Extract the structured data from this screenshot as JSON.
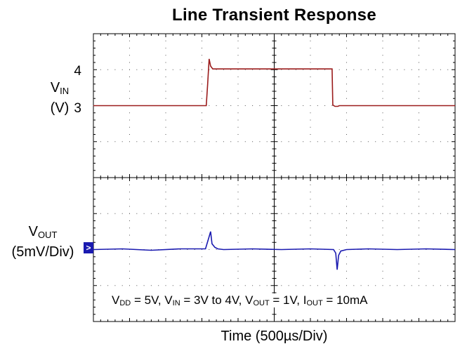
{
  "chart_data": {
    "type": "line",
    "title": "Line Transient Response",
    "xlabel": "Time (500µs/Div)",
    "x_unit": "µs",
    "x_per_div": 500,
    "xlim": [
      0,
      5000
    ],
    "grid": true,
    "panels": [
      {
        "name_main": "V",
        "name_sub": "IN",
        "unit": "(V)",
        "ylim": [
          2,
          5
        ],
        "yticks": [
          "3",
          "4"
        ],
        "ytick_values": [
          3,
          4
        ],
        "color": "#9b1c1c",
        "series": {
          "x": [
            0,
            1500,
            1560,
            1580,
            1600,
            1620,
            1650,
            1700,
            2500,
            3000,
            3200,
            3300,
            3310,
            3340,
            3380,
            3400,
            5000
          ],
          "y": [
            3.0,
            3.0,
            3.0,
            3.6,
            4.3,
            4.1,
            4.02,
            4.02,
            4.02,
            4.02,
            4.02,
            4.02,
            3.02,
            2.98,
            2.98,
            3.0,
            3.0
          ]
        }
      },
      {
        "name_main": "V",
        "name_sub": "OUT",
        "unit": "(5mV/Div)",
        "mv_per_div": 5,
        "ylim_mV": [
          -10,
          10
        ],
        "color": "#1a1ab0",
        "marker": ">",
        "series": {
          "x": [
            0,
            400,
            800,
            1200,
            1550,
            1600,
            1620,
            1640,
            1680,
            1720,
            1800,
            2200,
            2600,
            3000,
            3320,
            3350,
            3370,
            3390,
            3420,
            3500,
            3800,
            4200,
            4600,
            5000
          ],
          "y_mV": [
            0,
            0.1,
            -0.1,
            0.1,
            0.1,
            1.8,
            2.5,
            0.8,
            0.3,
            0.1,
            0,
            0.1,
            0,
            0.1,
            0,
            -0.5,
            -2.8,
            -0.8,
            -0.2,
            0,
            0.1,
            0,
            0.1,
            0
          ]
        }
      }
    ],
    "annotation": {
      "parts": [
        {
          "t": "V"
        },
        {
          "t": "DD",
          "sub": true
        },
        {
          "t": " = 5V, V"
        },
        {
          "t": "IN",
          "sub": true
        },
        {
          "t": " = 3V to 4V, V"
        },
        {
          "t": "OUT",
          "sub": true
        },
        {
          "t": " = 1V, I"
        },
        {
          "t": "OUT",
          "sub": true
        },
        {
          "t": " = 10mA"
        }
      ]
    }
  }
}
